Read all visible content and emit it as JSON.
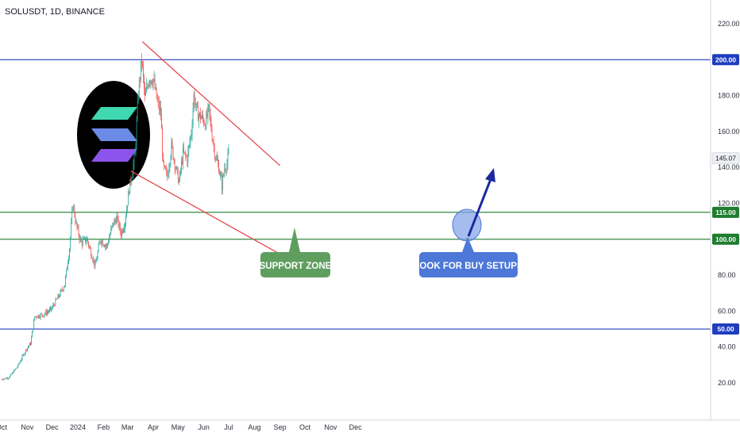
{
  "header": {
    "symbol_line": "SOLUSDT, 1D, BINANCE"
  },
  "chart_data": {
    "type": "candlestick",
    "title": "SOLUSDT, 1D, BINANCE",
    "symbol": "SOLUSDT",
    "interval": "1D",
    "exchange": "BINANCE",
    "ylim": [
      0,
      230
    ],
    "y_ticks": [
      "20.00",
      "40.00",
      "60.00",
      "80.00",
      "100.00",
      "120.00",
      "140.00",
      "160.00",
      "180.00",
      "200.00",
      "220.00"
    ],
    "x_labels": [
      {
        "label": "Oct",
        "date": "2023-10-01"
      },
      {
        "label": "Nov",
        "date": "2023-11-01"
      },
      {
        "label": "Dec",
        "date": "2023-12-01"
      },
      {
        "label": "2024",
        "date": "2024-01-01"
      },
      {
        "label": "Feb",
        "date": "2024-02-01"
      },
      {
        "label": "Mar",
        "date": "2024-03-01"
      },
      {
        "label": "Apr",
        "date": "2024-04-01"
      },
      {
        "label": "May",
        "date": "2024-05-01"
      },
      {
        "label": "Jun",
        "date": "2024-06-01"
      },
      {
        "label": "Jul",
        "date": "2024-07-01"
      },
      {
        "label": "Aug",
        "date": "2024-08-01"
      },
      {
        "label": "Sep",
        "date": "2024-09-01"
      },
      {
        "label": "Oct",
        "date": "2024-10-01"
      },
      {
        "label": "Nov",
        "date": "2024-11-01"
      },
      {
        "label": "Dec",
        "date": "2024-12-01"
      }
    ],
    "price_path": [
      [
        "2023-10-01",
        22
      ],
      [
        "2023-10-10",
        23
      ],
      [
        "2023-10-20",
        29
      ],
      [
        "2023-10-31",
        39
      ],
      [
        "2023-11-05",
        42
      ],
      [
        "2023-11-10",
        57
      ],
      [
        "2023-11-20",
        58
      ],
      [
        "2023-11-30",
        61
      ],
      [
        "2023-12-06",
        66
      ],
      [
        "2023-12-11",
        70
      ],
      [
        "2023-12-16",
        75
      ],
      [
        "2023-12-22",
        95
      ],
      [
        "2023-12-26",
        120
      ],
      [
        "2023-12-30",
        108
      ],
      [
        "2024-01-05",
        98
      ],
      [
        "2024-01-12",
        100
      ],
      [
        "2024-01-22",
        85
      ],
      [
        "2024-01-28",
        100
      ],
      [
        "2024-02-05",
        96
      ],
      [
        "2024-02-12",
        108
      ],
      [
        "2024-02-17",
        112
      ],
      [
        "2024-02-22",
        103
      ],
      [
        "2024-02-27",
        110
      ],
      [
        "2024-03-03",
        128
      ],
      [
        "2024-03-10",
        147
      ],
      [
        "2024-03-14",
        182
      ],
      [
        "2024-03-18",
        200
      ],
      [
        "2024-03-22",
        178
      ],
      [
        "2024-03-27",
        190
      ],
      [
        "2024-04-01",
        189
      ],
      [
        "2024-04-06",
        176
      ],
      [
        "2024-04-10",
        170
      ],
      [
        "2024-04-13",
        140
      ],
      [
        "2024-04-18",
        135
      ],
      [
        "2024-04-23",
        152
      ],
      [
        "2024-04-28",
        140
      ],
      [
        "2024-05-02",
        132
      ],
      [
        "2024-05-07",
        148
      ],
      [
        "2024-05-12",
        145
      ],
      [
        "2024-05-17",
        160
      ],
      [
        "2024-05-20",
        180
      ],
      [
        "2024-05-24",
        170
      ],
      [
        "2024-05-29",
        168
      ],
      [
        "2024-06-03",
        165
      ],
      [
        "2024-06-07",
        172
      ],
      [
        "2024-06-11",
        158
      ],
      [
        "2024-06-15",
        146
      ],
      [
        "2024-06-19",
        140
      ],
      [
        "2024-06-23",
        130
      ],
      [
        "2024-06-26",
        140
      ],
      [
        "2024-06-29",
        142
      ],
      [
        "2024-07-01",
        148
      ]
    ],
    "series": [
      {
        "style": "horizontal_line",
        "price": 200,
        "color": "#1f3dbf",
        "label": "200.00"
      },
      {
        "style": "horizontal_line",
        "price": 115,
        "color": "#1e7d2e",
        "label": "115.00"
      },
      {
        "style": "horizontal_line",
        "price": 100,
        "color": "#1e7d2e",
        "label": "100.00"
      },
      {
        "style": "horizontal_line",
        "price": 50,
        "color": "#1f3dbf",
        "label": "50.00"
      },
      {
        "style": "trendline",
        "color": "#e5484d",
        "start": [
          "2024-03-19",
          210
        ],
        "end": [
          "2024-09-01",
          141
        ]
      },
      {
        "style": "trendline",
        "color": "#e5484d",
        "start": [
          "2024-03-05",
          138
        ],
        "end": [
          "2024-08-31",
          92
        ]
      }
    ],
    "current_price": "145.07",
    "annotations": [
      {
        "text": "SUPPORT ZONE",
        "color": "#5f9e5f"
      },
      {
        "text": "LOOK FOR BUY SETUPS",
        "color": "#4d78d8"
      }
    ],
    "grid": false,
    "colors": {
      "up": "#26a69a",
      "down": "#ef5350",
      "axis_text": "#2a2e39"
    }
  }
}
